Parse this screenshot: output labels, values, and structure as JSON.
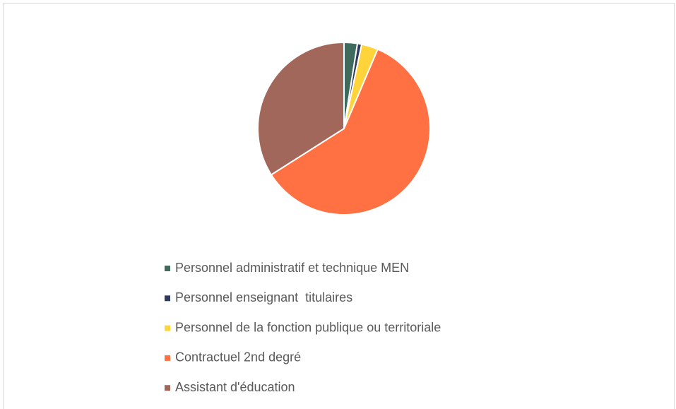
{
  "chart_data": {
    "type": "pie",
    "categories": [
      "Personnel administratif et technique MEN",
      "Personnel enseignant  titulaires",
      "Personnel de la fonction publique ou territoriale",
      "Contractuel 2nd degré",
      "Assistant d'éducation"
    ],
    "values": [
      2.5,
      0.8,
      3.1,
      59.6,
      34.0
    ],
    "colors": [
      "#3f6b5e",
      "#2f3b5e",
      "#ffd43b",
      "#ff7043",
      "#a0675a"
    ],
    "legend": "bottom"
  }
}
